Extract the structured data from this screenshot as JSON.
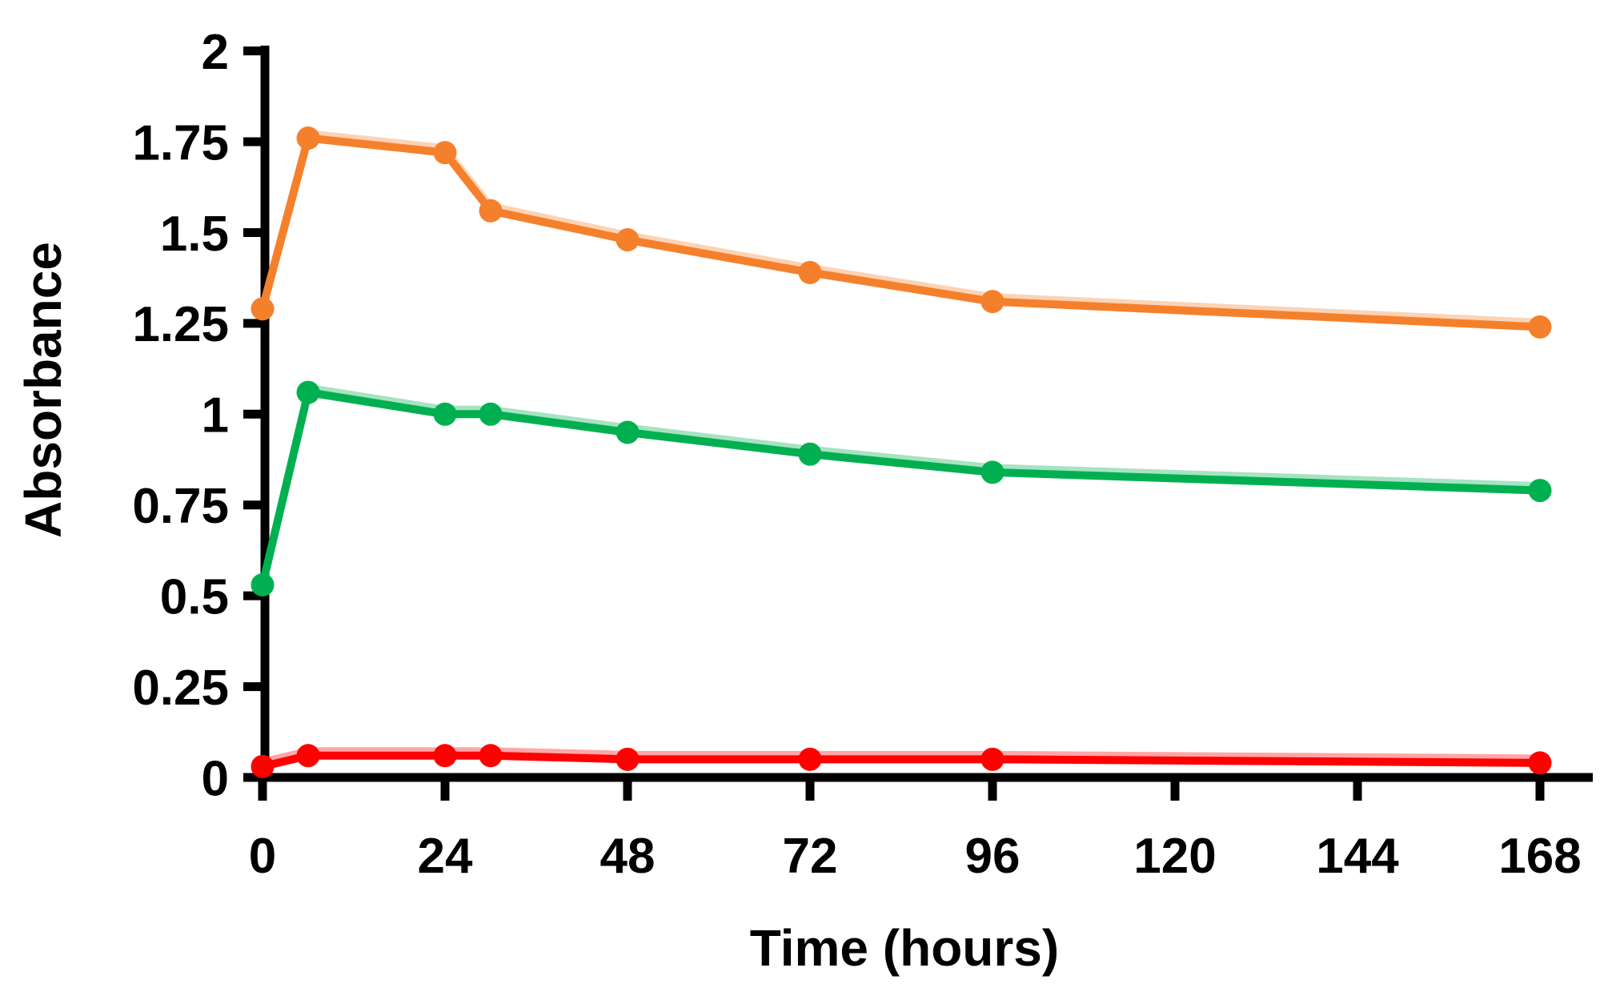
{
  "page": {
    "background": "#ffffff"
  },
  "chart_data": {
    "type": "line",
    "title": "",
    "xlabel": "Time (hours)",
    "ylabel": "Absorbance",
    "x": [
      0,
      6,
      24,
      30,
      48,
      72,
      96,
      168
    ],
    "series": [
      {
        "name": "orange-series",
        "color": "#F5802C",
        "values": [
          1.29,
          1.76,
          1.72,
          1.56,
          1.48,
          1.39,
          1.31,
          1.24
        ]
      },
      {
        "name": "green-series",
        "color": "#00B050",
        "values": [
          0.53,
          1.06,
          1.0,
          1.0,
          0.95,
          0.89,
          0.84,
          0.79
        ]
      },
      {
        "name": "red-series",
        "color": "#FF0000",
        "values": [
          0.03,
          0.06,
          0.06,
          0.06,
          0.05,
          0.05,
          0.05,
          0.04
        ]
      }
    ],
    "x_ticks": [
      0,
      24,
      48,
      72,
      96,
      120,
      144,
      168
    ],
    "x_tick_labels": [
      "0",
      "24",
      "48",
      "72",
      "96",
      "120",
      "144",
      "168"
    ],
    "y_ticks": [
      0,
      0.25,
      0.5,
      0.75,
      1,
      1.25,
      1.5,
      1.75,
      2
    ],
    "y_tick_labels": [
      "0",
      "0.25",
      "0.5",
      "0.75",
      "1",
      "1.25",
      "1.5",
      "1.75",
      "2"
    ],
    "xlim": [
      0,
      175
    ],
    "ylim": [
      0,
      2
    ],
    "grid": false,
    "legend": "none",
    "marker": "circle",
    "axis_color": "#000000"
  }
}
